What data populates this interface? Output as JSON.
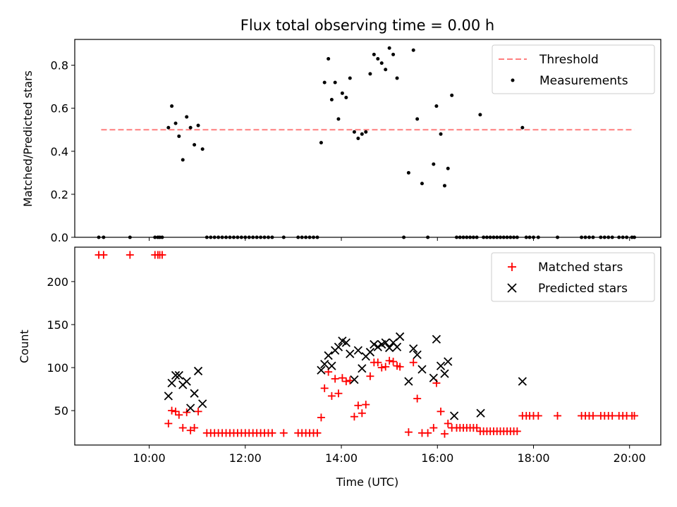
{
  "chart_data": [
    {
      "type": "scatter",
      "title": "Flux total observing time = 0.00 h",
      "xlabel": "",
      "ylabel": "Matched/Predicted stars",
      "xlim": [
        8.45,
        20.65
      ],
      "ylim": [
        0.0,
        0.92
      ],
      "x_ticks": [
        10,
        12,
        14,
        16,
        18,
        20
      ],
      "y_ticks": [
        0.0,
        0.2,
        0.4,
        0.6,
        0.8
      ],
      "y_tick_labels": [
        "0.0",
        "0.2",
        "0.4",
        "0.6",
        "0.8"
      ],
      "legend_position": "top-right",
      "grid": false,
      "threshold": {
        "name": "Threshold",
        "y": 0.5,
        "x_range": [
          9.0,
          20.1
        ],
        "color": "#ff7f7f"
      },
      "series": [
        {
          "name": "Measurements",
          "marker": "dot",
          "color": "#000000",
          "points": [
            [
              8.95,
              0
            ],
            [
              9.05,
              0
            ],
            [
              9.6,
              0
            ],
            [
              10.12,
              0
            ],
            [
              10.18,
              0
            ],
            [
              10.22,
              0
            ],
            [
              10.27,
              0
            ],
            [
              10.4,
              0.51
            ],
            [
              10.47,
              0.61
            ],
            [
              10.55,
              0.53
            ],
            [
              10.62,
              0.47
            ],
            [
              10.7,
              0.36
            ],
            [
              10.78,
              0.56
            ],
            [
              10.86,
              0.51
            ],
            [
              10.94,
              0.43
            ],
            [
              11.02,
              0.52
            ],
            [
              11.11,
              0.41
            ],
            [
              11.2,
              0
            ],
            [
              11.28,
              0
            ],
            [
              11.36,
              0
            ],
            [
              11.44,
              0
            ],
            [
              11.52,
              0
            ],
            [
              11.6,
              0
            ],
            [
              11.68,
              0
            ],
            [
              11.76,
              0
            ],
            [
              11.84,
              0
            ],
            [
              11.92,
              0
            ],
            [
              12.0,
              0
            ],
            [
              12.08,
              0
            ],
            [
              12.16,
              0
            ],
            [
              12.24,
              0
            ],
            [
              12.32,
              0
            ],
            [
              12.4,
              0
            ],
            [
              12.48,
              0
            ],
            [
              12.56,
              0
            ],
            [
              12.8,
              0
            ],
            [
              13.1,
              0
            ],
            [
              13.18,
              0
            ],
            [
              13.26,
              0
            ],
            [
              13.34,
              0
            ],
            [
              13.42,
              0
            ],
            [
              13.5,
              0
            ],
            [
              13.58,
              0.44
            ],
            [
              13.65,
              0.72
            ],
            [
              13.73,
              0.83
            ],
            [
              13.8,
              0.64
            ],
            [
              13.87,
              0.72
            ],
            [
              13.94,
              0.55
            ],
            [
              14.02,
              0.67
            ],
            [
              14.1,
              0.65
            ],
            [
              14.18,
              0.74
            ],
            [
              14.27,
              0.49
            ],
            [
              14.35,
              0.46
            ],
            [
              14.43,
              0.48
            ],
            [
              14.51,
              0.49
            ],
            [
              14.6,
              0.76
            ],
            [
              14.68,
              0.85
            ],
            [
              14.76,
              0.83
            ],
            [
              14.84,
              0.81
            ],
            [
              14.92,
              0.78
            ],
            [
              15.0,
              0.88
            ],
            [
              15.08,
              0.85
            ],
            [
              15.16,
              0.74
            ],
            [
              15.3,
              0
            ],
            [
              15.4,
              0.3
            ],
            [
              15.5,
              0.87
            ],
            [
              15.58,
              0.55
            ],
            [
              15.68,
              0.25
            ],
            [
              15.8,
              0
            ],
            [
              15.92,
              0.34
            ],
            [
              15.98,
              0.61
            ],
            [
              16.07,
              0.48
            ],
            [
              16.15,
              0.24
            ],
            [
              16.22,
              0.32
            ],
            [
              16.3,
              0.66
            ],
            [
              16.4,
              0
            ],
            [
              16.47,
              0
            ],
            [
              16.54,
              0
            ],
            [
              16.61,
              0
            ],
            [
              16.68,
              0
            ],
            [
              16.75,
              0
            ],
            [
              16.82,
              0
            ],
            [
              16.89,
              0.57
            ],
            [
              16.96,
              0
            ],
            [
              17.03,
              0
            ],
            [
              17.1,
              0
            ],
            [
              17.17,
              0
            ],
            [
              17.24,
              0
            ],
            [
              17.31,
              0
            ],
            [
              17.38,
              0
            ],
            [
              17.45,
              0
            ],
            [
              17.52,
              0
            ],
            [
              17.59,
              0
            ],
            [
              17.66,
              0
            ],
            [
              17.77,
              0.51
            ],
            [
              17.85,
              0
            ],
            [
              17.92,
              0
            ],
            [
              18.0,
              0
            ],
            [
              18.1,
              0
            ],
            [
              18.5,
              0
            ],
            [
              19.0,
              0
            ],
            [
              19.08,
              0
            ],
            [
              19.16,
              0
            ],
            [
              19.24,
              0
            ],
            [
              19.4,
              0
            ],
            [
              19.48,
              0
            ],
            [
              19.56,
              0
            ],
            [
              19.64,
              0
            ],
            [
              19.78,
              0
            ],
            [
              19.86,
              0
            ],
            [
              19.94,
              0
            ],
            [
              20.05,
              0
            ],
            [
              20.1,
              0
            ]
          ]
        }
      ]
    },
    {
      "type": "scatter",
      "title": "",
      "xlabel": "Time (UTC)",
      "ylabel": "Count",
      "xlim": [
        8.45,
        20.65
      ],
      "ylim": [
        10,
        240
      ],
      "x_ticks": [
        10,
        12,
        14,
        16,
        18,
        20
      ],
      "x_tick_labels": [
        "10:00",
        "12:00",
        "14:00",
        "16:00",
        "18:00",
        "20:00"
      ],
      "y_ticks": [
        50,
        100,
        150,
        200
      ],
      "y_tick_labels": [
        "50",
        "100",
        "150",
        "200"
      ],
      "legend_position": "top-right",
      "grid": false,
      "series": [
        {
          "name": "Matched stars",
          "marker": "plus",
          "color": "#ff0000",
          "points": [
            [
              8.95,
              231
            ],
            [
              9.05,
              231
            ],
            [
              9.6,
              231
            ],
            [
              10.12,
              231
            ],
            [
              10.18,
              231
            ],
            [
              10.22,
              231
            ],
            [
              10.27,
              231
            ],
            [
              10.4,
              35
            ],
            [
              10.47,
              50
            ],
            [
              10.55,
              49
            ],
            [
              10.62,
              45
            ],
            [
              10.7,
              30
            ],
            [
              10.78,
              48
            ],
            [
              10.86,
              27
            ],
            [
              10.94,
              30
            ],
            [
              11.02,
              49
            ],
            [
              11.2,
              24
            ],
            [
              11.28,
              24
            ],
            [
              11.36,
              24
            ],
            [
              11.44,
              24
            ],
            [
              11.52,
              24
            ],
            [
              11.6,
              24
            ],
            [
              11.68,
              24
            ],
            [
              11.76,
              24
            ],
            [
              11.84,
              24
            ],
            [
              11.92,
              24
            ],
            [
              12.0,
              24
            ],
            [
              12.08,
              24
            ],
            [
              12.16,
              24
            ],
            [
              12.24,
              24
            ],
            [
              12.32,
              24
            ],
            [
              12.4,
              24
            ],
            [
              12.48,
              24
            ],
            [
              12.56,
              24
            ],
            [
              12.8,
              24
            ],
            [
              13.1,
              24
            ],
            [
              13.18,
              24
            ],
            [
              13.26,
              24
            ],
            [
              13.34,
              24
            ],
            [
              13.42,
              24
            ],
            [
              13.5,
              24
            ],
            [
              13.58,
              42
            ],
            [
              13.65,
              76
            ],
            [
              13.73,
              95
            ],
            [
              13.8,
              67
            ],
            [
              13.87,
              87
            ],
            [
              13.94,
              70
            ],
            [
              14.02,
              88
            ],
            [
              14.1,
              84
            ],
            [
              14.18,
              85
            ],
            [
              14.27,
              43
            ],
            [
              14.35,
              56
            ],
            [
              14.43,
              47
            ],
            [
              14.51,
              57
            ],
            [
              14.6,
              90
            ],
            [
              14.68,
              106
            ],
            [
              14.76,
              106
            ],
            [
              14.84,
              100
            ],
            [
              14.92,
              101
            ],
            [
              15.0,
              108
            ],
            [
              15.08,
              107
            ],
            [
              15.16,
              102
            ],
            [
              15.22,
              101
            ],
            [
              15.4,
              25
            ],
            [
              15.5,
              106
            ],
            [
              15.58,
              64
            ],
            [
              15.68,
              24
            ],
            [
              15.8,
              24
            ],
            [
              15.92,
              30
            ],
            [
              15.98,
              82
            ],
            [
              16.07,
              49
            ],
            [
              16.15,
              23
            ],
            [
              16.22,
              35
            ],
            [
              16.3,
              30
            ],
            [
              16.4,
              30
            ],
            [
              16.47,
              30
            ],
            [
              16.54,
              30
            ],
            [
              16.61,
              30
            ],
            [
              16.68,
              30
            ],
            [
              16.75,
              30
            ],
            [
              16.82,
              30
            ],
            [
              16.89,
              26
            ],
            [
              16.96,
              26
            ],
            [
              17.03,
              26
            ],
            [
              17.1,
              26
            ],
            [
              17.17,
              26
            ],
            [
              17.24,
              26
            ],
            [
              17.31,
              26
            ],
            [
              17.38,
              26
            ],
            [
              17.45,
              26
            ],
            [
              17.52,
              26
            ],
            [
              17.59,
              26
            ],
            [
              17.66,
              26
            ],
            [
              17.77,
              44
            ],
            [
              17.85,
              44
            ],
            [
              17.92,
              44
            ],
            [
              18.0,
              44
            ],
            [
              18.1,
              44
            ],
            [
              18.5,
              44
            ],
            [
              19.0,
              44
            ],
            [
              19.08,
              44
            ],
            [
              19.16,
              44
            ],
            [
              19.24,
              44
            ],
            [
              19.4,
              44
            ],
            [
              19.48,
              44
            ],
            [
              19.56,
              44
            ],
            [
              19.64,
              44
            ],
            [
              19.78,
              44
            ],
            [
              19.86,
              44
            ],
            [
              19.94,
              44
            ],
            [
              20.05,
              44
            ],
            [
              20.1,
              44
            ]
          ]
        },
        {
          "name": "Predicted stars",
          "marker": "x",
          "color": "#000000",
          "points": [
            [
              10.4,
              67
            ],
            [
              10.47,
              82
            ],
            [
              10.55,
              91
            ],
            [
              10.62,
              91
            ],
            [
              10.7,
              80
            ],
            [
              10.78,
              84
            ],
            [
              10.86,
              53
            ],
            [
              10.94,
              70
            ],
            [
              11.02,
              96
            ],
            [
              11.11,
              58
            ],
            [
              13.58,
              97
            ],
            [
              13.65,
              104
            ],
            [
              13.73,
              114
            ],
            [
              13.8,
              102
            ],
            [
              13.87,
              120
            ],
            [
              13.94,
              124
            ],
            [
              14.02,
              131
            ],
            [
              14.1,
              129
            ],
            [
              14.18,
              116
            ],
            [
              14.27,
              86
            ],
            [
              14.35,
              120
            ],
            [
              14.43,
              99
            ],
            [
              14.51,
              113
            ],
            [
              14.6,
              118
            ],
            [
              14.68,
              127
            ],
            [
              14.76,
              124
            ],
            [
              14.84,
              127
            ],
            [
              14.92,
              129
            ],
            [
              15.0,
              123
            ],
            [
              15.08,
              129
            ],
            [
              15.16,
              124
            ],
            [
              15.22,
              136
            ],
            [
              15.4,
              84
            ],
            [
              15.5,
              122
            ],
            [
              15.58,
              115
            ],
            [
              15.68,
              98
            ],
            [
              15.92,
              88
            ],
            [
              15.98,
              133
            ],
            [
              16.07,
              102
            ],
            [
              16.15,
              93
            ],
            [
              16.22,
              107
            ],
            [
              16.35,
              44
            ],
            [
              16.9,
              47
            ],
            [
              17.77,
              84
            ]
          ]
        }
      ]
    }
  ]
}
